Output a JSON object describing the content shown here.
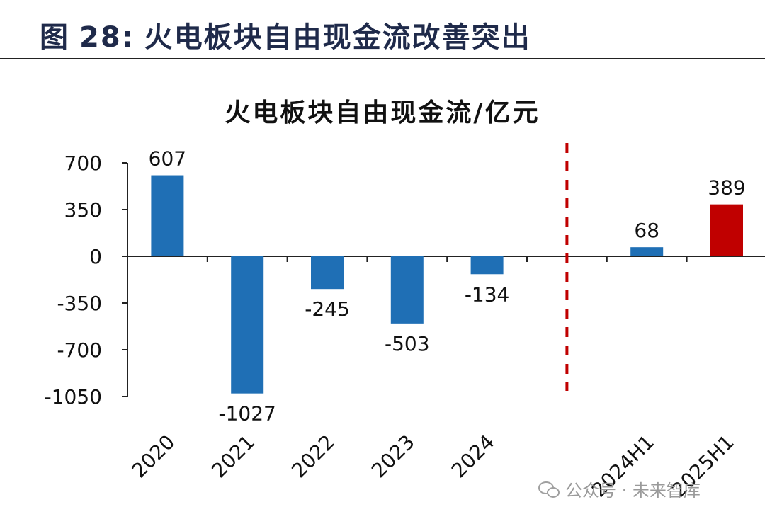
{
  "header": {
    "figure_prefix": "图",
    "figure_number": "28:",
    "figure_caption": "火电板块自由现金流改善突出"
  },
  "chart_data": {
    "type": "bar",
    "title": "火电板块自由现金流/亿元",
    "xlabel": "",
    "ylabel": "",
    "categories": [
      "2020",
      "2021",
      "2022",
      "2023",
      "2024",
      "",
      "2024H1",
      "2025H1"
    ],
    "values": [
      607,
      -1027,
      -245,
      -503,
      -134,
      null,
      68,
      389
    ],
    "data_labels": [
      "607",
      "-1027",
      "-245",
      "-503",
      "-134",
      "",
      "68",
      "389"
    ],
    "ylim": [
      -1050,
      700
    ],
    "yticks": [
      700,
      350,
      0,
      -350,
      -700,
      -1050
    ],
    "bar_colors": [
      "#1f6fb5",
      "#1f6fb5",
      "#1f6fb5",
      "#1f6fb5",
      "#1f6fb5",
      "",
      "#1f6fb5",
      "#c00000"
    ],
    "divider_color": "#c00000",
    "grid": false,
    "legend": "none"
  },
  "watermark": {
    "text": "公众号 · 未来智库",
    "icon": "wechat-icon"
  }
}
